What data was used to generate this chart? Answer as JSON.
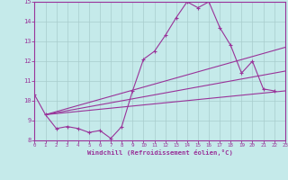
{
  "xlabel": "Windchill (Refroidissement éolien,°C)",
  "xlim": [
    0,
    23
  ],
  "ylim": [
    8,
    15
  ],
  "yticks": [
    8,
    9,
    10,
    11,
    12,
    13,
    14,
    15
  ],
  "xticks": [
    0,
    1,
    2,
    3,
    4,
    5,
    6,
    7,
    8,
    9,
    10,
    11,
    12,
    13,
    14,
    15,
    16,
    17,
    18,
    19,
    20,
    21,
    22,
    23
  ],
  "bg_color": "#c5eaea",
  "line_color": "#993399",
  "grid_color": "#a8cccc",
  "main_x": [
    0,
    1,
    2,
    3,
    4,
    5,
    6,
    7,
    8,
    9,
    10,
    11,
    12,
    13,
    14,
    15,
    16,
    17,
    18,
    19,
    20,
    21,
    22
  ],
  "main_y": [
    10.3,
    9.3,
    8.6,
    8.7,
    8.6,
    8.4,
    8.5,
    8.1,
    8.7,
    10.5,
    12.1,
    12.5,
    13.3,
    14.2,
    15.0,
    14.7,
    15.0,
    13.7,
    12.8,
    11.4,
    12.0,
    10.6,
    10.5
  ],
  "trend1_x": [
    1,
    23
  ],
  "trend1_y": [
    9.3,
    12.7
  ],
  "trend2_x": [
    1,
    23
  ],
  "trend2_y": [
    9.3,
    11.5
  ],
  "trend3_x": [
    1,
    23
  ],
  "trend3_y": [
    9.3,
    10.5
  ]
}
